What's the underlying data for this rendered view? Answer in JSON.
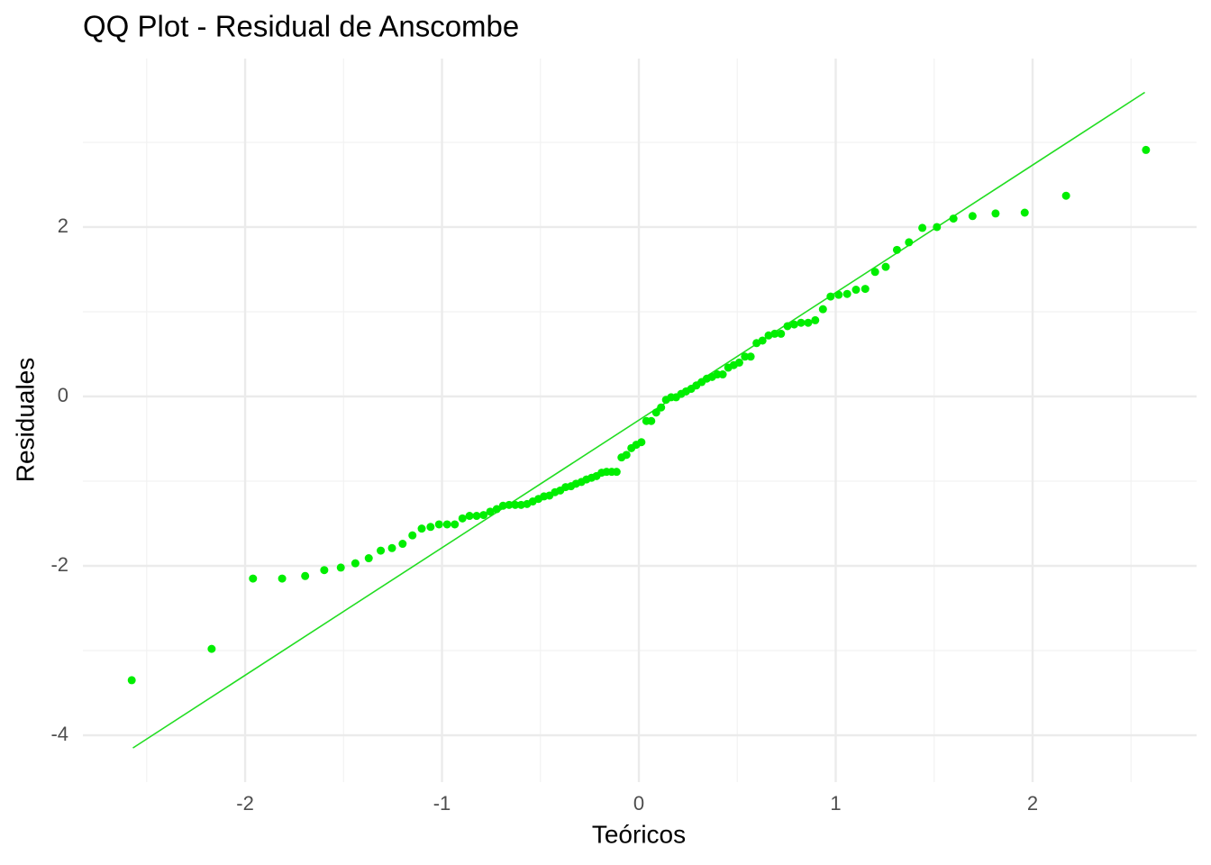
{
  "chart_data": {
    "type": "qq",
    "title": "QQ Plot - Residual de Anscombe",
    "x_label": "Teóricos",
    "y_label": "Residuales",
    "color": "#00ee00",
    "line_color": "#22dd22",
    "grid": true,
    "xlim": [
      -2.824,
      2.833
    ],
    "ylim": [
      -4.553,
      3.989
    ],
    "xticks": [
      -2,
      -1,
      0,
      1,
      2
    ],
    "yticks": [
      -4,
      -2,
      0,
      2
    ],
    "xminor": [
      -2.5,
      -1.5,
      -0.5,
      0.5,
      1.5,
      2.5
    ],
    "yminor": [
      -3,
      -1,
      1,
      3
    ],
    "reference_line": {
      "x": [
        -2.57,
        2.57
      ],
      "y": [
        -4.15,
        3.59
      ]
    },
    "x": [
      -2.576,
      -2.17,
      -1.96,
      -1.812,
      -1.695,
      -1.598,
      -1.514,
      -1.44,
      -1.372,
      -1.311,
      -1.254,
      -1.2,
      -1.15,
      -1.103,
      -1.058,
      -1.015,
      -0.974,
      -0.935,
      -0.896,
      -0.86,
      -0.824,
      -0.789,
      -0.755,
      -0.722,
      -0.69,
      -0.659,
      -0.628,
      -0.598,
      -0.568,
      -0.539,
      -0.51,
      -0.482,
      -0.454,
      -0.426,
      -0.399,
      -0.372,
      -0.345,
      -0.319,
      -0.292,
      -0.266,
      -0.24,
      -0.215,
      -0.189,
      -0.164,
      -0.138,
      -0.113,
      -0.088,
      -0.063,
      -0.038,
      -0.013,
      0.013,
      0.038,
      0.063,
      0.088,
      0.113,
      0.138,
      0.164,
      0.189,
      0.215,
      0.24,
      0.266,
      0.292,
      0.319,
      0.345,
      0.372,
      0.399,
      0.426,
      0.454,
      0.482,
      0.51,
      0.539,
      0.568,
      0.598,
      0.628,
      0.659,
      0.69,
      0.722,
      0.755,
      0.789,
      0.824,
      0.86,
      0.896,
      0.935,
      0.974,
      1.015,
      1.058,
      1.103,
      1.15,
      1.2,
      1.254,
      1.311,
      1.372,
      1.44,
      1.514,
      1.598,
      1.695,
      1.812,
      1.96,
      2.17,
      2.576
    ],
    "values": [
      -3.35,
      -2.98,
      -2.15,
      -2.15,
      -2.12,
      -2.05,
      -2.02,
      -1.97,
      -1.91,
      -1.82,
      -1.79,
      -1.74,
      -1.64,
      -1.56,
      -1.54,
      -1.51,
      -1.51,
      -1.51,
      -1.44,
      -1.41,
      -1.41,
      -1.4,
      -1.36,
      -1.33,
      -1.29,
      -1.28,
      -1.28,
      -1.28,
      -1.27,
      -1.24,
      -1.21,
      -1.18,
      -1.17,
      -1.13,
      -1.11,
      -1.07,
      -1.06,
      -1.03,
      -1.01,
      -0.98,
      -0.96,
      -0.94,
      -0.9,
      -0.89,
      -0.89,
      -0.89,
      -0.72,
      -0.69,
      -0.61,
      -0.57,
      -0.54,
      -0.29,
      -0.29,
      -0.19,
      -0.13,
      -0.04,
      -0.01,
      -0.01,
      0.03,
      0.06,
      0.09,
      0.13,
      0.17,
      0.21,
      0.23,
      0.26,
      0.26,
      0.34,
      0.37,
      0.4,
      0.47,
      0.47,
      0.63,
      0.66,
      0.72,
      0.74,
      0.74,
      0.83,
      0.85,
      0.87,
      0.87,
      0.9,
      1.03,
      1.18,
      1.2,
      1.21,
      1.26,
      1.27,
      1.47,
      1.53,
      1.73,
      1.82,
      1.99,
      2.0,
      2.1,
      2.13,
      2.16,
      2.17,
      2.37,
      2.91
    ]
  }
}
